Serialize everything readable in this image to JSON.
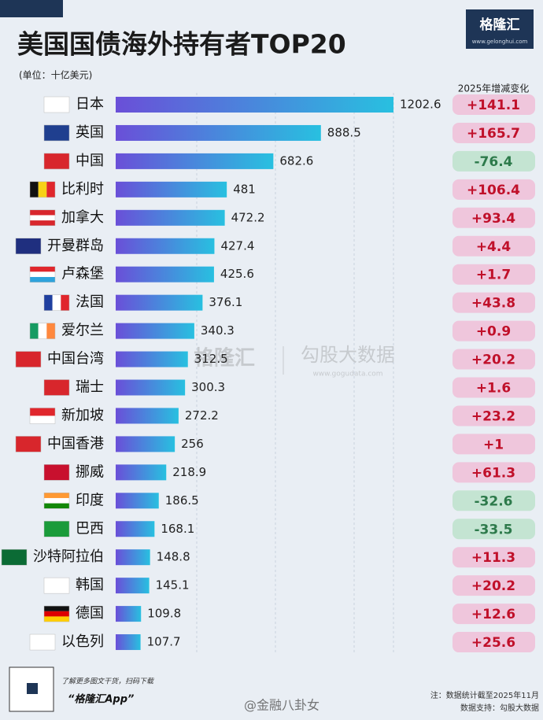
{
  "header": {
    "title": "美国国债海外持有者TOP20",
    "unit": "(单位：十亿美元)",
    "logo": "格隆汇",
    "logo_url": "www.gelonghui.com"
  },
  "chart_data": {
    "type": "bar",
    "orientation": "horizontal",
    "categories": [
      "日本",
      "英国",
      "中国",
      "比利时",
      "加拿大",
      "开曼群岛",
      "卢森堡",
      "法国",
      "爱尔兰",
      "中国台湾",
      "瑞士",
      "新加坡",
      "中国香港",
      "挪威",
      "印度",
      "巴西",
      "沙特阿拉伯",
      "韩国",
      "德国",
      "以色列"
    ],
    "values": [
      1202.6,
      888.5,
      682.6,
      481,
      472.2,
      427.4,
      425.6,
      376.1,
      340.3,
      312.5,
      300.3,
      272.2,
      256,
      218.9,
      186.5,
      168.1,
      148.8,
      145.1,
      109.8,
      107.7
    ],
    "colors": [
      "#6a4fd8",
      "#28c0e0"
    ],
    "changes": {
      "title": "2025年增减变化",
      "values": [
        141.1,
        165.7,
        -76.4,
        106.4,
        93.4,
        4.4,
        1.7,
        43.8,
        0.9,
        20.2,
        1.6,
        23.2,
        1,
        61.3,
        -32.6,
        -33.5,
        11.3,
        20.2,
        12.6,
        25.6
      ],
      "value_labels": [
        "+141.1",
        "+165.7",
        "-76.4",
        "+106.4",
        "+93.4",
        "+4.4",
        "+1.7",
        "+43.8",
        "+0.9",
        "+20.2",
        "+1.6",
        "+23.2",
        "+1",
        "+61.3",
        "-32.6",
        "-33.5",
        "+11.3",
        "+20.2",
        "+12.6",
        "+25.6"
      ]
    }
  },
  "watermark": {
    "brand": "格隆汇",
    "data": "勾股大数据",
    "url": "www.gogudata.com"
  },
  "footer": {
    "promo": "了解更多图文干货，扫码下载",
    "app": "“格隆汇App”",
    "note": "注：数据统计截至2025年11月",
    "source": "数据支持：勾股大数据",
    "weibo": "@金融八卦女"
  }
}
